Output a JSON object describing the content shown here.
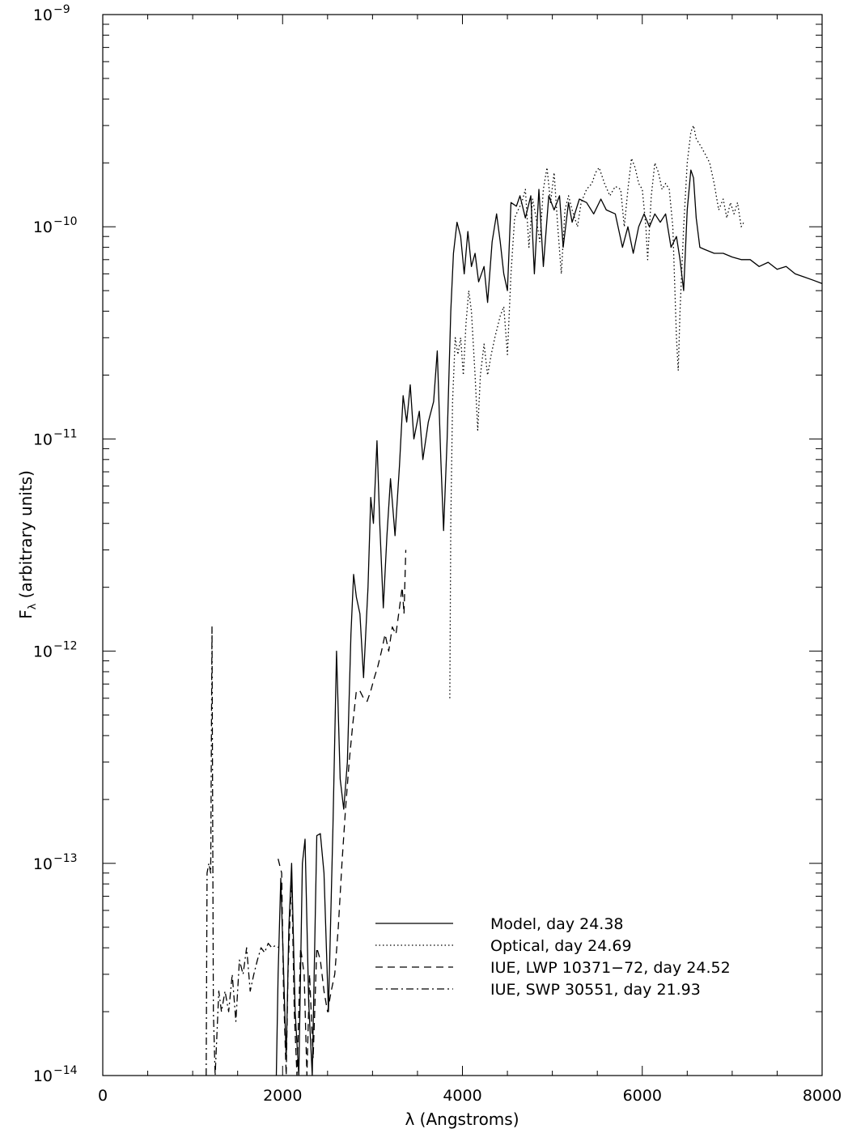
{
  "chart_data": {
    "type": "line",
    "xlabel": "λ (Angstroms)",
    "ylabel_main": "F",
    "ylabel_sub": "λ",
    "ylabel_rest": " (arbitrary units)",
    "xlim": [
      0,
      8000
    ],
    "ylim": [
      1e-14,
      1e-09
    ],
    "yscale": "log",
    "x_ticks": [
      0,
      2000,
      4000,
      6000,
      8000
    ],
    "x_tick_labels": [
      "0",
      "2000",
      "4000",
      "6000",
      "8000"
    ],
    "y_ticks": [
      1e-14,
      1e-13,
      1e-12,
      1e-11,
      1e-10,
      1e-09
    ],
    "y_tick_base": "10",
    "y_tick_exponents": [
      "−14",
      "−13",
      "−12",
      "−11",
      "−10",
      "−9"
    ],
    "grid": false,
    "legend_position": "bottom-right",
    "series": [
      {
        "name": "Model, day 24.38",
        "dash": "solid",
        "points": [
          [
            1930,
            1e-14
          ],
          [
            1950,
            3e-14
          ],
          [
            1980,
            8.5e-14
          ],
          [
            2010,
            3.2e-14
          ],
          [
            2040,
            1.2e-14
          ],
          [
            2070,
            5e-14
          ],
          [
            2100,
            1e-13
          ],
          [
            2140,
            2e-14
          ],
          [
            2180,
            1e-14
          ],
          [
            2220,
            1e-13
          ],
          [
            2250,
            1.3e-13
          ],
          [
            2290,
            2.2e-14
          ],
          [
            2330,
            1e-14
          ],
          [
            2380,
            1.35e-13
          ],
          [
            2420,
            1.38e-13
          ],
          [
            2460,
            9e-14
          ],
          [
            2510,
            2e-14
          ],
          [
            2560,
            1.5e-13
          ],
          [
            2600,
            1e-12
          ],
          [
            2640,
            2.5e-13
          ],
          [
            2680,
            1.8e-13
          ],
          [
            2720,
            3e-13
          ],
          [
            2760,
            1.2e-12
          ],
          [
            2790,
            2.3e-12
          ],
          [
            2820,
            1.8e-12
          ],
          [
            2860,
            1.5e-12
          ],
          [
            2900,
            7.5e-13
          ],
          [
            2950,
            2e-12
          ],
          [
            2980,
            5.3e-12
          ],
          [
            3010,
            4e-12
          ],
          [
            3050,
            9.8e-12
          ],
          [
            3080,
            4e-12
          ],
          [
            3120,
            1.6e-12
          ],
          [
            3160,
            3.5e-12
          ],
          [
            3200,
            6.5e-12
          ],
          [
            3250,
            3.5e-12
          ],
          [
            3300,
            7.5e-12
          ],
          [
            3340,
            1.6e-11
          ],
          [
            3380,
            1.2e-11
          ],
          [
            3420,
            1.8e-11
          ],
          [
            3460,
            1e-11
          ],
          [
            3520,
            1.35e-11
          ],
          [
            3560,
            8e-12
          ],
          [
            3620,
            1.2e-11
          ],
          [
            3680,
            1.5e-11
          ],
          [
            3720,
            2.6e-11
          ],
          [
            3760,
            8e-12
          ],
          [
            3790,
            3.7e-12
          ],
          [
            3830,
            1e-11
          ],
          [
            3870,
            4e-11
          ],
          [
            3900,
            7.5e-11
          ],
          [
            3940,
            1.05e-10
          ],
          [
            3980,
            9e-11
          ],
          [
            4020,
            6e-11
          ],
          [
            4060,
            9.5e-11
          ],
          [
            4100,
            6.5e-11
          ],
          [
            4140,
            7.5e-11
          ],
          [
            4180,
            5.5e-11
          ],
          [
            4240,
            6.5e-11
          ],
          [
            4280,
            4.4e-11
          ],
          [
            4330,
            8.5e-11
          ],
          [
            4380,
            1.15e-10
          ],
          [
            4420,
            8.5e-11
          ],
          [
            4460,
            6e-11
          ],
          [
            4500,
            5e-11
          ],
          [
            4540,
            1.3e-10
          ],
          [
            4600,
            1.25e-10
          ],
          [
            4640,
            1.4e-10
          ],
          [
            4700,
            1.1e-10
          ],
          [
            4760,
            1.4e-10
          ],
          [
            4800,
            6e-11
          ],
          [
            4850,
            1.5e-10
          ],
          [
            4900,
            6.5e-11
          ],
          [
            4960,
            1.4e-10
          ],
          [
            5020,
            1.2e-10
          ],
          [
            5080,
            1.4e-10
          ],
          [
            5120,
            8e-11
          ],
          [
            5180,
            1.3e-10
          ],
          [
            5220,
            1.05e-10
          ],
          [
            5300,
            1.35e-10
          ],
          [
            5380,
            1.3e-10
          ],
          [
            5460,
            1.15e-10
          ],
          [
            5540,
            1.35e-10
          ],
          [
            5600,
            1.2e-10
          ],
          [
            5700,
            1.15e-10
          ],
          [
            5780,
            8e-11
          ],
          [
            5840,
            1e-10
          ],
          [
            5900,
            7.5e-11
          ],
          [
            5960,
            1e-10
          ],
          [
            6020,
            1.15e-10
          ],
          [
            6080,
            1e-10
          ],
          [
            6140,
            1.15e-10
          ],
          [
            6200,
            1.05e-10
          ],
          [
            6260,
            1.15e-10
          ],
          [
            6320,
            8e-11
          ],
          [
            6380,
            9e-11
          ],
          [
            6420,
            7e-11
          ],
          [
            6460,
            5e-11
          ],
          [
            6500,
            1.2e-10
          ],
          [
            6540,
            1.85e-10
          ],
          [
            6570,
            1.7e-10
          ],
          [
            6600,
            1.1e-10
          ],
          [
            6640,
            8e-11
          ],
          [
            6700,
            7.8e-11
          ],
          [
            6800,
            7.5e-11
          ],
          [
            6900,
            7.5e-11
          ],
          [
            7000,
            7.2e-11
          ],
          [
            7100,
            7e-11
          ],
          [
            7200,
            7e-11
          ],
          [
            7300,
            6.5e-11
          ],
          [
            7400,
            6.8e-11
          ],
          [
            7500,
            6.3e-11
          ],
          [
            7600,
            6.5e-11
          ],
          [
            7700,
            6e-11
          ],
          [
            7800,
            5.8e-11
          ],
          [
            7900,
            5.6e-11
          ],
          [
            8000,
            5.4e-11
          ]
        ]
      },
      {
        "name": "Optical, day 24.69",
        "dash": "dotted",
        "points": [
          [
            3860,
            6e-13
          ],
          [
            3870,
            4e-12
          ],
          [
            3890,
            1.5e-11
          ],
          [
            3920,
            3e-11
          ],
          [
            3950,
            2.5e-11
          ],
          [
            3980,
            3e-11
          ],
          [
            4010,
            2e-11
          ],
          [
            4040,
            3.5e-11
          ],
          [
            4070,
            5e-11
          ],
          [
            4100,
            4e-11
          ],
          [
            4140,
            2e-11
          ],
          [
            4170,
            1.1e-11
          ],
          [
            4200,
            2e-11
          ],
          [
            4240,
            2.8e-11
          ],
          [
            4280,
            2e-11
          ],
          [
            4320,
            2.5e-11
          ],
          [
            4360,
            3e-11
          ],
          [
            4420,
            3.8e-11
          ],
          [
            4460,
            4.2e-11
          ],
          [
            4500,
            2.5e-11
          ],
          [
            4540,
            6e-11
          ],
          [
            4580,
            1.1e-10
          ],
          [
            4620,
            1.2e-10
          ],
          [
            4660,
            1.3e-10
          ],
          [
            4700,
            1.5e-10
          ],
          [
            4740,
            8e-11
          ],
          [
            4780,
            1.35e-10
          ],
          [
            4820,
            1.1e-10
          ],
          [
            4860,
            8.5e-11
          ],
          [
            4900,
            1.5e-10
          ],
          [
            4940,
            1.9e-10
          ],
          [
            4980,
            1.3e-10
          ],
          [
            5020,
            1.8e-10
          ],
          [
            5060,
            1e-10
          ],
          [
            5100,
            6e-11
          ],
          [
            5140,
            1.2e-10
          ],
          [
            5180,
            1.4e-10
          ],
          [
            5220,
            1.2e-10
          ],
          [
            5280,
            1e-10
          ],
          [
            5320,
            1.3e-10
          ],
          [
            5380,
            1.5e-10
          ],
          [
            5440,
            1.6e-10
          ],
          [
            5480,
            1.8e-10
          ],
          [
            5520,
            1.9e-10
          ],
          [
            5580,
            1.6e-10
          ],
          [
            5640,
            1.4e-10
          ],
          [
            5700,
            1.55e-10
          ],
          [
            5760,
            1.5e-10
          ],
          [
            5800,
            1e-10
          ],
          [
            5840,
            1.5e-10
          ],
          [
            5880,
            2.1e-10
          ],
          [
            5920,
            1.9e-10
          ],
          [
            5960,
            1.6e-10
          ],
          [
            6000,
            1.5e-10
          ],
          [
            6040,
            1e-10
          ],
          [
            6060,
            7e-11
          ],
          [
            6100,
            1.4e-10
          ],
          [
            6140,
            2e-10
          ],
          [
            6180,
            1.8e-10
          ],
          [
            6220,
            1.5e-10
          ],
          [
            6260,
            1.6e-10
          ],
          [
            6300,
            1.5e-10
          ],
          [
            6340,
            1e-10
          ],
          [
            6380,
            3e-11
          ],
          [
            6400,
            2.1e-11
          ],
          [
            6420,
            4e-11
          ],
          [
            6460,
            1e-10
          ],
          [
            6500,
            2e-10
          ],
          [
            6540,
            2.8e-10
          ],
          [
            6570,
            3e-10
          ],
          [
            6600,
            2.6e-10
          ],
          [
            6650,
            2.4e-10
          ],
          [
            6700,
            2.2e-10
          ],
          [
            6750,
            2e-10
          ],
          [
            6800,
            1.6e-10
          ],
          [
            6850,
            1.2e-10
          ],
          [
            6900,
            1.35e-10
          ],
          [
            6940,
            1.1e-10
          ],
          [
            6980,
            1.3e-10
          ],
          [
            7020,
            1.15e-10
          ],
          [
            7060,
            1.3e-10
          ],
          [
            7100,
            1e-10
          ],
          [
            7130,
            1.05e-10
          ]
        ]
      },
      {
        "name": "IUE, LWP 10371−72, day 24.52",
        "dash": "dashed",
        "points": [
          [
            1950,
            1.05e-13
          ],
          [
            1990,
            9e-14
          ],
          [
            2010,
            2.5e-14
          ],
          [
            2040,
            1e-14
          ],
          [
            2060,
            3e-14
          ],
          [
            2100,
            9e-14
          ],
          [
            2130,
            2e-14
          ],
          [
            2160,
            1e-14
          ],
          [
            2200,
            4e-14
          ],
          [
            2240,
            3e-14
          ],
          [
            2270,
            1e-14
          ],
          [
            2300,
            3e-14
          ],
          [
            2340,
            1.2e-14
          ],
          [
            2380,
            4e-14
          ],
          [
            2420,
            3.5e-14
          ],
          [
            2460,
            2.5e-14
          ],
          [
            2500,
            2e-14
          ],
          [
            2540,
            2.5e-14
          ],
          [
            2580,
            3e-14
          ],
          [
            2620,
            5e-14
          ],
          [
            2660,
            1e-13
          ],
          [
            2700,
            1.8e-13
          ],
          [
            2740,
            3e-13
          ],
          [
            2780,
            4.5e-13
          ],
          [
            2820,
            6.5e-13
          ],
          [
            2860,
            6.5e-13
          ],
          [
            2900,
            6e-13
          ],
          [
            2940,
            5.8e-13
          ],
          [
            2980,
            6.5e-13
          ],
          [
            3020,
            7.5e-13
          ],
          [
            3060,
            8.5e-13
          ],
          [
            3100,
            1e-12
          ],
          [
            3140,
            1.2e-12
          ],
          [
            3180,
            1e-12
          ],
          [
            3220,
            1.3e-12
          ],
          [
            3260,
            1.2e-12
          ],
          [
            3300,
            1.6e-12
          ],
          [
            3330,
            2e-12
          ],
          [
            3350,
            1.5e-12
          ],
          [
            3370,
            3e-12
          ]
        ]
      },
      {
        "name": "IUE, SWP 30551, day 21.93",
        "dash": "dashdot",
        "points": [
          [
            1150,
            1e-14
          ],
          [
            1160,
            9e-14
          ],
          [
            1180,
            1e-13
          ],
          [
            1200,
            9e-14
          ],
          [
            1215,
            1.3e-12
          ],
          [
            1230,
            2e-14
          ],
          [
            1250,
            1e-14
          ],
          [
            1290,
            2.5e-14
          ],
          [
            1320,
            2e-14
          ],
          [
            1360,
            2.5e-14
          ],
          [
            1400,
            2e-14
          ],
          [
            1440,
            3e-14
          ],
          [
            1480,
            1.8e-14
          ],
          [
            1520,
            3.5e-14
          ],
          [
            1560,
            3e-14
          ],
          [
            1600,
            4e-14
          ],
          [
            1640,
            2.5e-14
          ],
          [
            1680,
            3e-14
          ],
          [
            1720,
            3.5e-14
          ],
          [
            1760,
            4e-14
          ],
          [
            1800,
            3.8e-14
          ],
          [
            1840,
            4.2e-14
          ],
          [
            1880,
            4e-14
          ],
          [
            1920,
            4.1e-14
          ],
          [
            1960,
            4e-14
          ]
        ]
      }
    ]
  }
}
